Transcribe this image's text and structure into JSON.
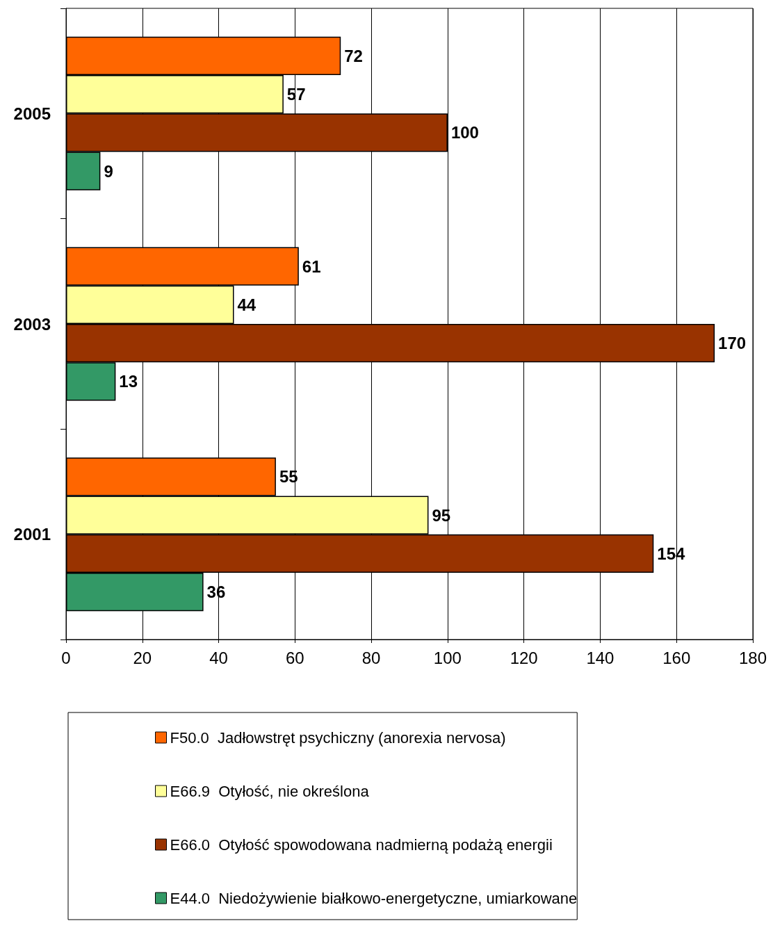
{
  "chart_data": {
    "type": "bar",
    "orientation": "horizontal",
    "categories": [
      "2005",
      "2003",
      "2001"
    ],
    "series": [
      {
        "name": "F50.0  Jadłowstręt psychiczny (anorexia nervosa)",
        "color": "#ff6600",
        "values": [
          72,
          61,
          55
        ]
      },
      {
        "name": "E66.9  Otyłość, nie określona",
        "color": "#ffff99",
        "values": [
          57,
          44,
          95
        ]
      },
      {
        "name": "E66.0  Otyłość spowodowana nadmierną podażą energii",
        "color": "#993300",
        "values": [
          100,
          170,
          154
        ]
      },
      {
        "name": "E44.0  Niedożywienie białkowo-energetyczne, umiarkowane",
        "color": "#339966",
        "values": [
          9,
          13,
          36
        ]
      }
    ],
    "xlim": [
      0,
      180
    ],
    "xticks": [
      0,
      20,
      40,
      60,
      80,
      100,
      120,
      140,
      160,
      180
    ],
    "grid": "x",
    "legend": "bottom",
    "data_labels": true
  }
}
